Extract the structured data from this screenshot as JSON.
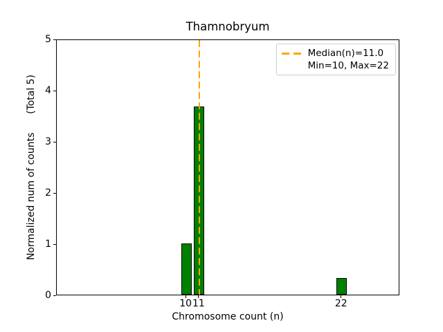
{
  "chart_data": {
    "type": "bar",
    "title": "Thamnobryum",
    "xlabel": "Chromosome count (n)",
    "ylabel": "Normalized num of counts      (Total 5)",
    "xlim": [
      0,
      26.5
    ],
    "ylim": [
      0,
      5
    ],
    "xticks": [
      {
        "value": 10,
        "label": "10"
      },
      {
        "value": 11,
        "label": "11"
      },
      {
        "value": 22,
        "label": "22"
      }
    ],
    "yticks": [
      {
        "value": 0,
        "label": "0"
      },
      {
        "value": 1,
        "label": "1"
      },
      {
        "value": 2,
        "label": "2"
      },
      {
        "value": 3,
        "label": "3"
      },
      {
        "value": 4,
        "label": "4"
      },
      {
        "value": 5,
        "label": "5"
      }
    ],
    "bar_width": 0.8,
    "bars": [
      {
        "x": 10,
        "value": 1.0
      },
      {
        "x": 11,
        "value": 3.67
      },
      {
        "x": 22,
        "value": 0.33
      }
    ],
    "colors": {
      "bar_fill": "#008000",
      "bar_edge": "#000000",
      "median_line": "#FFA500"
    },
    "median_line": {
      "x": 11,
      "style": "dashed"
    },
    "legend": {
      "position": "upper right",
      "entries": [
        {
          "label": "Median(n)=11.0",
          "sample": "orange-dashed-line"
        },
        {
          "label": "Min=10, Max=22",
          "sample": "none"
        }
      ]
    },
    "stats": {
      "median": "11.0",
      "min": "10",
      "max": "22",
      "total": "5"
    },
    "grid": false
  }
}
